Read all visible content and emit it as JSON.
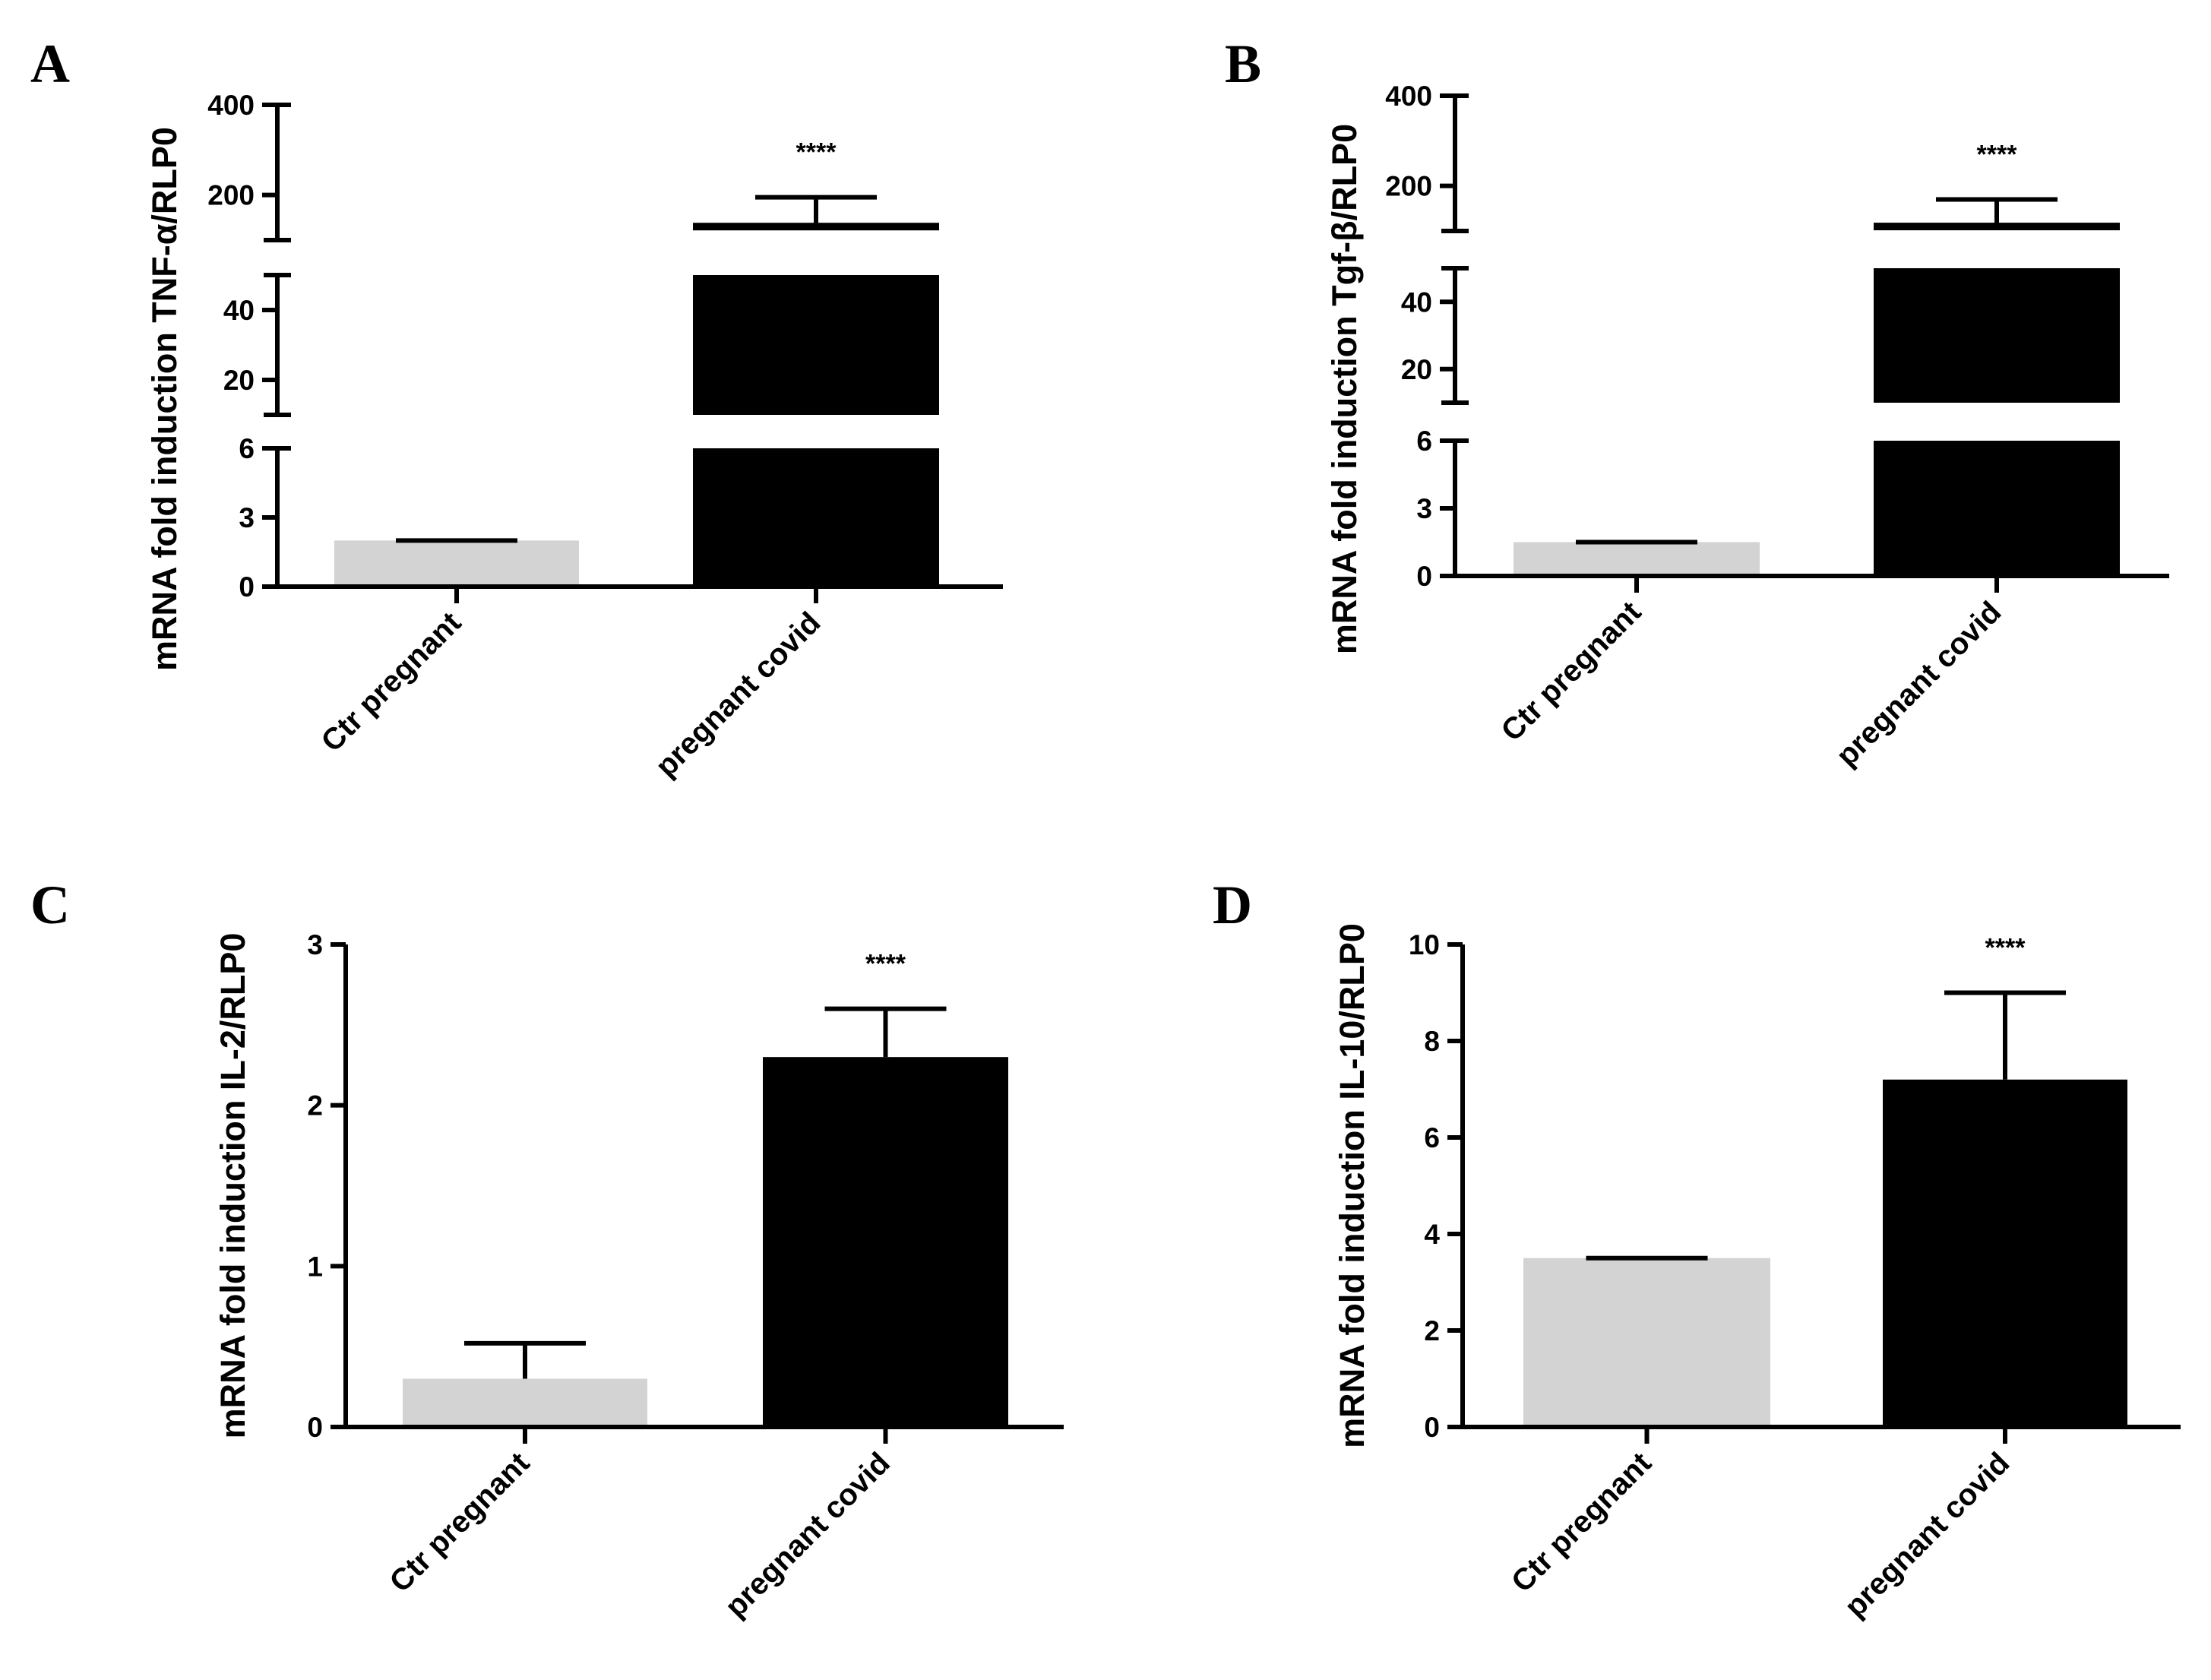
{
  "chart_data": [
    {
      "panel": "A",
      "type": "bar",
      "categories": [
        "Ctr pregnant",
        "pregnant covid"
      ],
      "values": [
        2,
        130
      ],
      "errors": [
        0,
        65
      ],
      "colors": [
        "#d3d3d3",
        "#000000"
      ],
      "ylabel": "mRNA fold induction TNF-α/RLP0",
      "significance": "****",
      "broken_axis": true,
      "segments": [
        {
          "range": [
            0,
            6
          ],
          "ticks": [
            0,
            3,
            6
          ]
        },
        {
          "range": [
            10,
            50
          ],
          "ticks": [
            20,
            40
          ]
        },
        {
          "range": [
            100,
            400
          ],
          "ticks": [
            200,
            400
          ]
        }
      ]
    },
    {
      "panel": "B",
      "type": "bar",
      "categories": [
        "Ctr pregnant",
        "pregnant covid"
      ],
      "values": [
        1.5,
        110
      ],
      "errors": [
        0,
        60
      ],
      "colors": [
        "#d3d3d3",
        "#000000"
      ],
      "ylabel": "mRNA fold induction Tgf-β/RLP0",
      "significance": "****",
      "broken_axis": true,
      "segments": [
        {
          "range": [
            0,
            6
          ],
          "ticks": [
            0,
            3,
            6
          ]
        },
        {
          "range": [
            10,
            50
          ],
          "ticks": [
            20,
            40
          ]
        },
        {
          "range": [
            100,
            400
          ],
          "ticks": [
            200,
            400
          ]
        }
      ]
    },
    {
      "panel": "C",
      "type": "bar",
      "categories": [
        "Ctr pregnant",
        "pregnant covid"
      ],
      "values": [
        0.3,
        2.3
      ],
      "errors": [
        0.22,
        0.3
      ],
      "colors": [
        "#d3d3d3",
        "#000000"
      ],
      "ylabel": "mRNA fold induction IL-2/RLP0",
      "significance": "****",
      "broken_axis": false,
      "ylim": [
        0,
        3
      ],
      "ticks": [
        0,
        1,
        2,
        3
      ]
    },
    {
      "panel": "D",
      "type": "bar",
      "categories": [
        "Ctr pregnant",
        "pregnant covid"
      ],
      "values": [
        3.5,
        7.2
      ],
      "errors": [
        0,
        1.8
      ],
      "colors": [
        "#d3d3d3",
        "#000000"
      ],
      "ylabel": "mRNA fold induction IL-10/RLP0",
      "significance": "****",
      "broken_axis": false,
      "ylim": [
        0,
        10
      ],
      "ticks": [
        0,
        2,
        4,
        6,
        8,
        10
      ]
    }
  ]
}
